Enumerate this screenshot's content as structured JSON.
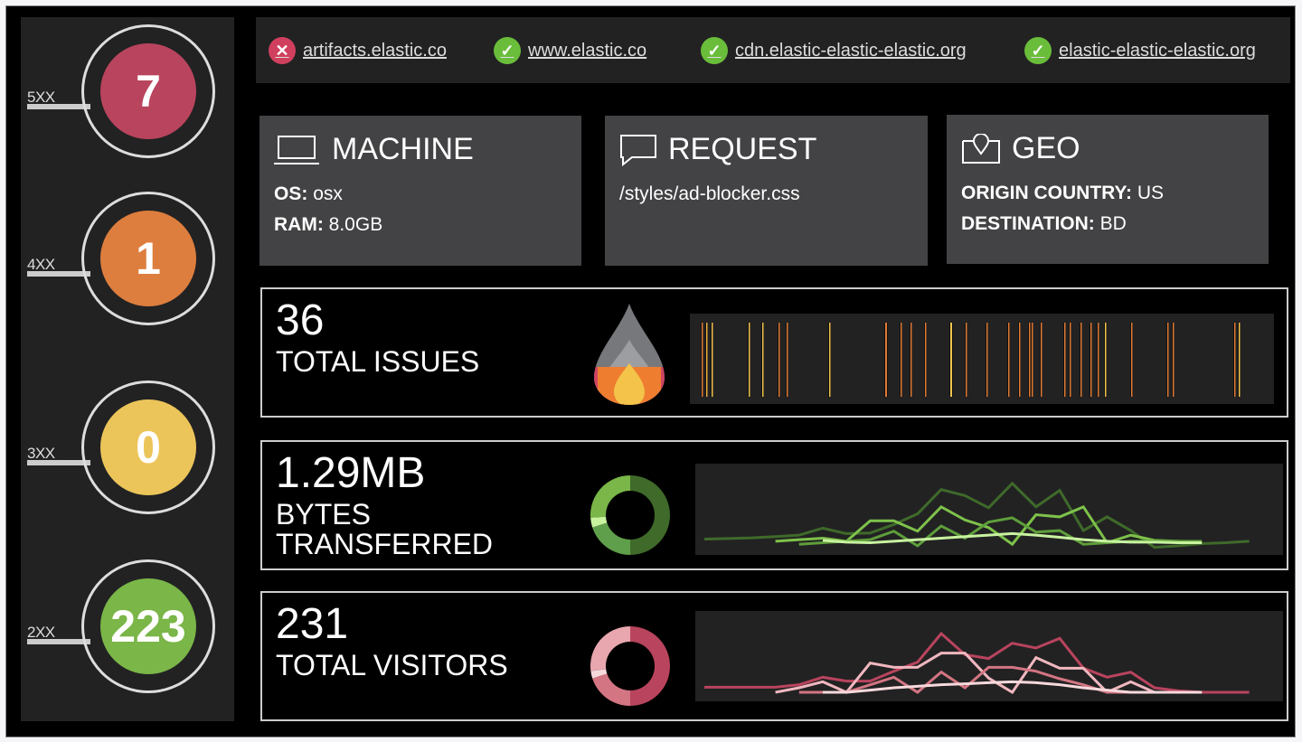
{
  "status_codes": [
    {
      "label": "5XX",
      "count": "7",
      "color": "#b9445d"
    },
    {
      "label": "4XX",
      "count": "1",
      "color": "#dd7e3e"
    },
    {
      "label": "3XX",
      "count": "0",
      "color": "#ecc55a"
    },
    {
      "label": "2XX",
      "count": "223",
      "color": "#7ab648"
    }
  ],
  "sites": [
    {
      "name": "artifacts.elastic.co",
      "status": "down",
      "icon": "x-icon",
      "color": "#d0405e"
    },
    {
      "name": "www.elastic.co",
      "status": "up",
      "icon": "check-icon",
      "color": "#6abd3a"
    },
    {
      "name": "cdn.elastic-elastic-elastic.org",
      "status": "up",
      "icon": "check-icon",
      "color": "#6abd3a"
    },
    {
      "name": "elastic-elastic-elastic.org",
      "status": "up",
      "icon": "check-icon",
      "color": "#6abd3a"
    }
  ],
  "cards": {
    "machine": {
      "title": "MACHINE",
      "icon": "laptop-icon",
      "os_label": "OS:",
      "os": "osx",
      "ram_label": "RAM:",
      "ram": "8.0GB"
    },
    "request": {
      "title": "REQUEST",
      "icon": "speech-bubble-icon",
      "path": "/styles/ad-blocker.css"
    },
    "geo": {
      "title": "GEO",
      "icon": "map-pin-icon",
      "origin_label": "ORIGIN COUNTRY:",
      "origin": "US",
      "dest_label": "DESTINATION:",
      "dest": "BD"
    }
  },
  "metrics": {
    "issues": {
      "value": "36",
      "caption": "TOTAL ISSUES",
      "icon": "flame-icon"
    },
    "bytes": {
      "value": "1.29MB",
      "caption1": "BYTES",
      "caption2": "TRANSFERRED"
    },
    "visitors": {
      "value": "231",
      "caption": "TOTAL VISITORS"
    }
  },
  "chart_data": [
    {
      "type": "barcode",
      "name": "issues-timeline",
      "events": [
        {
          "t": 13,
          "c": "#e07b35"
        },
        {
          "t": 18,
          "c": "#f0b040"
        },
        {
          "t": 24,
          "c": "#f2c44c"
        },
        {
          "t": 65,
          "c": "#f2c44c"
        },
        {
          "t": 80,
          "c": "#f2c44c"
        },
        {
          "t": 98,
          "c": "#e07b35"
        },
        {
          "t": 107,
          "c": "#e07b35"
        },
        {
          "t": 154,
          "c": "#f2c44c"
        },
        {
          "t": 216,
          "c": "#e07b35",
          "w": 2
        },
        {
          "t": 233,
          "c": "#e07b35"
        },
        {
          "t": 244,
          "c": "#e07b35"
        },
        {
          "t": 260,
          "c": "#e07b35"
        },
        {
          "t": 288,
          "c": "#f2c44c",
          "w": 2
        },
        {
          "t": 305,
          "c": "#e07b35"
        },
        {
          "t": 328,
          "c": "#e07b35"
        },
        {
          "t": 352,
          "c": "#e07b35"
        },
        {
          "t": 364,
          "c": "#e07b35"
        },
        {
          "t": 375,
          "c": "#e07b35"
        },
        {
          "t": 378,
          "c": "#e07b35"
        },
        {
          "t": 388,
          "c": "#e07b35"
        },
        {
          "t": 414,
          "c": "#e07b35"
        },
        {
          "t": 420,
          "c": "#e07b35"
        },
        {
          "t": 432,
          "c": "#e07b35"
        },
        {
          "t": 443,
          "c": "#e07b35"
        },
        {
          "t": 451,
          "c": "#e07b35"
        },
        {
          "t": 459,
          "c": "#f2c44c"
        },
        {
          "t": 488,
          "c": "#e07b35"
        },
        {
          "t": 528,
          "c": "#e07b35"
        },
        {
          "t": 534,
          "c": "#e07b35"
        },
        {
          "t": 602,
          "c": "#e07b35"
        },
        {
          "t": 607,
          "c": "#f2c44c"
        }
      ],
      "range": [
        0,
        645
      ]
    },
    {
      "type": "line",
      "name": "bytes",
      "series": [
        {
          "color": "#3f6a2a",
          "start": 0,
          "values": [
            52,
            54,
            56,
            60,
            65,
            88,
            70,
            72,
            100,
            135,
            215,
            195,
            155,
            235,
            158,
            212,
            80,
            125,
            80,
            25,
            30,
            37,
            40,
            45
          ]
        },
        {
          "color": "#7ec24a",
          "start": 3,
          "values": [
            45,
            50,
            55,
            45,
            112,
            112,
            78,
            158,
            115,
            90,
            35,
            132,
            125,
            158,
            40,
            65,
            48,
            45,
            42
          ]
        },
        {
          "color": "#5f9e3a",
          "start": 4,
          "values": [
            35,
            40,
            45,
            50,
            78,
            30,
            95,
            55,
            108,
            122,
            75,
            80,
            35,
            40,
            45,
            45,
            45,
            45
          ]
        },
        {
          "color": "#c8f2a0",
          "start": 5,
          "values": [
            48,
            42,
            40,
            45,
            50,
            55,
            60,
            65,
            70,
            65,
            58,
            50,
            45,
            42,
            42,
            40,
            40
          ]
        }
      ],
      "ymax": 300
    },
    {
      "type": "line",
      "name": "visitors",
      "series": [
        {
          "color": "#b9445d",
          "start": 0,
          "values": [
            47,
            47,
            47,
            47,
            55,
            80,
            67,
            67,
            100,
            130,
            225,
            155,
            142,
            193,
            177,
            209,
            110,
            80,
            97,
            45,
            35,
            30,
            30,
            30
          ]
        },
        {
          "color": "#f0b8bf",
          "start": 3,
          "values": [
            30,
            45,
            65,
            30,
            127,
            113,
            113,
            160,
            160,
            77,
            30,
            145,
            110,
            110,
            30,
            65,
            30,
            30,
            30
          ]
        },
        {
          "color": "#d37582",
          "start": 4,
          "values": [
            30,
            30,
            30,
            55,
            80,
            30,
            97,
            45,
            113,
            113,
            100,
            75,
            55,
            30,
            30,
            30,
            30,
            30
          ]
        },
        {
          "color": "#f7d9dc",
          "start": 5,
          "values": [
            30,
            30,
            37,
            45,
            50,
            55,
            58,
            62,
            65,
            62,
            55,
            45,
            37,
            30,
            30,
            30,
            30
          ]
        }
      ],
      "ymax": 300
    },
    {
      "type": "pie",
      "name": "bytes-donut",
      "slices": [
        {
          "value": 50,
          "color": "#3f6a2a"
        },
        {
          "value": 20,
          "color": "#5f9e4a"
        },
        {
          "value": 4,
          "color": "#c8f2a0"
        },
        {
          "value": 26,
          "color": "#7ab648"
        }
      ]
    },
    {
      "type": "pie",
      "name": "visitors-donut",
      "slices": [
        {
          "value": 50,
          "color": "#b9445d"
        },
        {
          "value": 20,
          "color": "#d37582"
        },
        {
          "value": 3,
          "color": "#f7d9dc"
        },
        {
          "value": 27,
          "color": "#e8a6ae"
        }
      ]
    }
  ]
}
